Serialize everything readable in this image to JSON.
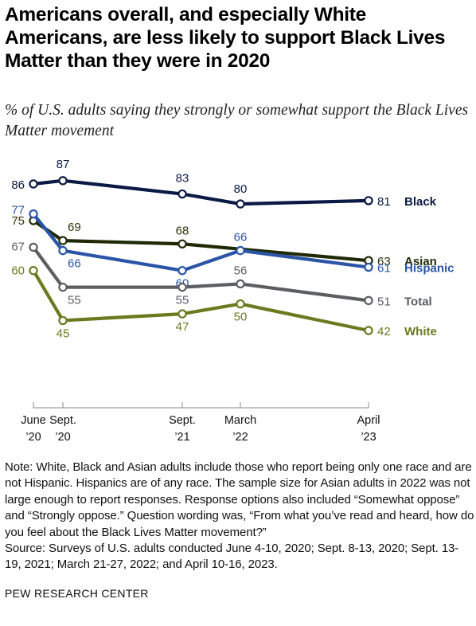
{
  "header": {
    "title": "Americans overall, and especially White Americans, are less likely to support Black Lives Matter than they were in 2020",
    "subtitle": "% of U.S. adults saying they strongly or somewhat support the Black Lives Matter movement"
  },
  "chart_data": {
    "type": "line",
    "x": [
      {
        "line1": "June",
        "line2": "’20",
        "date": "2020-06"
      },
      {
        "line1": "Sept.",
        "line2": "’20",
        "date": "2020-09"
      },
      {
        "line1": "Sept.",
        "line2": "’21",
        "date": "2021-09"
      },
      {
        "line1": "March",
        "line2": "’22",
        "date": "2022-03"
      },
      {
        "line1": "April",
        "line2": "’23",
        "date": "2023-04"
      }
    ],
    "series": [
      {
        "name": "Black",
        "color": "#0b1a45",
        "values": [
          86,
          87,
          83,
          80,
          81
        ]
      },
      {
        "name": "Asian",
        "color": "#1f2a05",
        "values": [
          75,
          69,
          68,
          null,
          63
        ]
      },
      {
        "name": "Hispanic",
        "color": "#2a55a6",
        "values": [
          77,
          66,
          60,
          66,
          61
        ]
      },
      {
        "name": "Total",
        "color": "#5c5e62",
        "values": [
          67,
          55,
          55,
          56,
          51
        ]
      },
      {
        "name": "White",
        "color": "#6b7a1e",
        "values": [
          60,
          45,
          47,
          50,
          42
        ]
      }
    ],
    "ylim": [
      20,
      95
    ],
    "grid": false,
    "legend": "direct labels at right end of lines"
  },
  "footer": {
    "note": "Note: White, Black and Asian adults include those who report being only one race and are not Hispanic. Hispanics are of any race. The sample size for Asian adults in 2022 was not large enough to report responses. Response options also included “Somewhat oppose” and “Strongly oppose.” Question wording was, “From what you’ve read and heard, how do you feel about the Black Lives Matter movement?”",
    "source": "Source: Surveys of U.S. adults conducted June 4-10, 2020; Sept. 8-13, 2020; Sept. 13-19, 2021; March 21-27, 2022; and April 10-16, 2023.",
    "org": "PEW RESEARCH CENTER"
  }
}
